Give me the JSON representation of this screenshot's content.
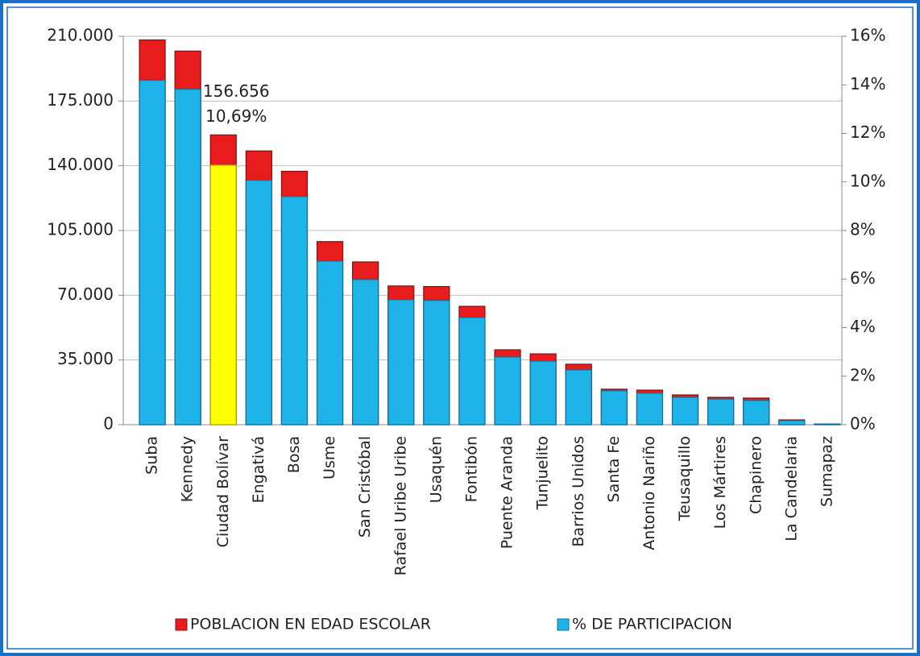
{
  "chart_data": {
    "type": "bar",
    "categories": [
      "Suba",
      "Kennedy",
      "Ciudad Bolívar",
      "Engativá",
      "Bosa",
      "Usme",
      "San Cristóbal",
      "Rafael Uribe Uribe",
      "Usaquén",
      "Fontibón",
      "Puente Aranda",
      "Tunjuelito",
      "Barrios Unidos",
      "Santa Fe",
      "Antonio Nariño",
      "Teusaquillo",
      "Los Mártires",
      "Chapinero",
      "La Candelaria",
      "Sumapaz"
    ],
    "series": [
      {
        "name": "POBLACION EN EDAD ESCOLAR",
        "color": "#e81c1c",
        "values": [
          208000,
          202000,
          156656,
          148000,
          137000,
          99000,
          88000,
          75000,
          74700,
          64000,
          40500,
          38300,
          32700,
          19200,
          18700,
          16100,
          14800,
          14400,
          2600,
          400
        ],
        "value_labels": [
          null,
          null,
          "156.656",
          null,
          null,
          null,
          null,
          null,
          null,
          null,
          null,
          null,
          null,
          null,
          null,
          null,
          null,
          null,
          null,
          null
        ]
      },
      {
        "name": "% DE PARTICIPACION",
        "color": "#1eb4ea",
        "axis": "y2",
        "highlight": {
          "index": 2,
          "color": "#ffff00"
        },
        "values": [
          14.19,
          13.82,
          10.69,
          10.07,
          9.4,
          6.74,
          5.98,
          5.15,
          5.12,
          4.42,
          2.79,
          2.62,
          2.26,
          1.4,
          1.3,
          1.13,
          1.06,
          1.0,
          0.17,
          0.03
        ],
        "value_labels": [
          null,
          null,
          "10,69%",
          null,
          null,
          null,
          null,
          null,
          null,
          null,
          null,
          null,
          null,
          null,
          null,
          null,
          null,
          null,
          null,
          null
        ]
      }
    ],
    "ylim": [
      0,
      210000
    ],
    "yticks": [
      0,
      {
        "value": 35000,
        "label": "35.000"
      },
      {
        "value": 70000,
        "label": "70.000"
      },
      {
        "value": 105000,
        "label": "105.000"
      },
      {
        "value": 140000,
        "label": "140.000"
      },
      {
        "value": 175000,
        "label": "175.000"
      },
      {
        "value": 210000,
        "label": "210.000"
      }
    ],
    "y2lim": [
      0,
      16
    ],
    "y2ticks": [
      {
        "value": 0,
        "label": "0%"
      },
      {
        "value": 2,
        "label": "2%"
      },
      {
        "value": 4,
        "label": "4%"
      },
      {
        "value": 6,
        "label": "6%"
      },
      {
        "value": 8,
        "label": "8%"
      },
      {
        "value": 10,
        "label": "10%"
      },
      {
        "value": 12,
        "label": "12%"
      },
      {
        "value": 14,
        "label": "14%"
      },
      {
        "value": 16,
        "label": "16%"
      }
    ],
    "grid": true,
    "legend": "bottom"
  }
}
